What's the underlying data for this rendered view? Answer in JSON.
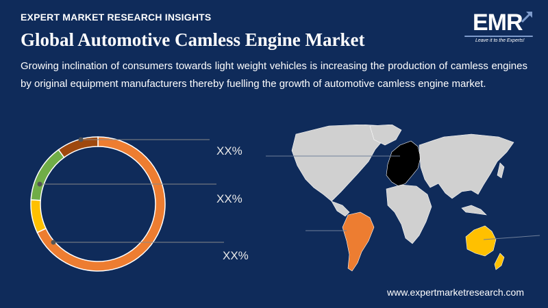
{
  "header": {
    "kicker": "EXPERT MARKET RESEARCH INSIGHTS",
    "title": "Global Automotive Camless Engine Market",
    "description": "Growing inclination of consumers towards light weight vehicles is increasing the production of camless engines by original equipment manufacturers thereby fuelling the growth of automotive camless engine market."
  },
  "logo": {
    "text": "EMR",
    "tagline": "Leave it to the Experts!"
  },
  "chart_data": {
    "type": "pie",
    "style": "donut",
    "slices": [
      {
        "value": 68,
        "color": "#ed7d31"
      },
      {
        "value": 8,
        "color": "#ffc000"
      },
      {
        "value": 14,
        "color": "#70ad47"
      },
      {
        "value": 10,
        "color": "#9e480e"
      }
    ],
    "labels": [
      "XX%",
      "XX%",
      "XX%"
    ]
  },
  "map": {
    "highlight_colors": {
      "europe": "#000000",
      "south_america": "#ed7d31",
      "australia": "#ffc000",
      "rest": "#d0d0d0"
    }
  },
  "footer": {
    "website": "www.expertmarketresearch.com"
  }
}
